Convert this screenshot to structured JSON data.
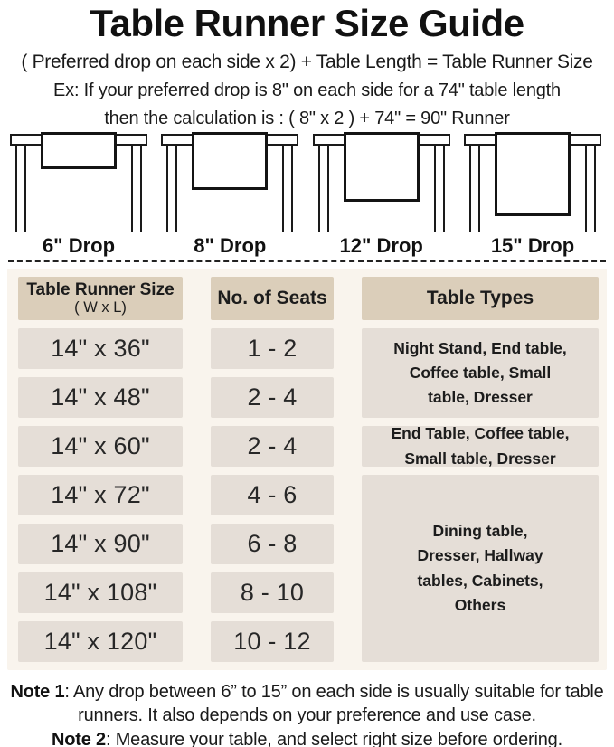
{
  "page": {
    "title": "Table Runner Size Guide",
    "formula": "( Preferred drop on each side x 2) + Table Length = Table Runner Size",
    "example_line1": "Ex: If your preferred drop is 8\" on each side for a 74\" table length",
    "example_line2": "then the calculation is : ( 8\" x 2 ) + 74\" = 90\" Runner"
  },
  "figures": [
    {
      "label": "6\" Drop"
    },
    {
      "label": "8\" Drop"
    },
    {
      "label": "12\" Drop"
    },
    {
      "label": "15\" Drop"
    }
  ],
  "guide": {
    "headers": {
      "size_line1": "Table Runner Size",
      "size_line2": "( W x L)",
      "seats": "No. of Seats",
      "types": "Table Types"
    },
    "rows": [
      {
        "size": "14\" x 36\"",
        "seats": "1 - 2"
      },
      {
        "size": "14\" x 48\"",
        "seats": "2 - 4"
      },
      {
        "size": "14\" x 60\"",
        "seats": "2 - 4"
      },
      {
        "size": "14\" x 72\"",
        "seats": "4 - 6"
      },
      {
        "size": "14\" x 90\"",
        "seats": "6 - 8"
      },
      {
        "size": "14\" x 108\"",
        "seats": "8 - 10"
      },
      {
        "size": "14\" x 120\"",
        "seats": "10 - 12"
      }
    ],
    "type_groups": [
      {
        "text": "Night Stand, End table,\nCoffee table, Small\ntable, Dresser"
      },
      {
        "text": "End Table, Coffee table,\nSmall table, Dresser"
      },
      {
        "text": "Dining table,\nDresser, Hallway\ntables, Cabinets,\nOthers"
      }
    ]
  },
  "notes": [
    {
      "label": "Note 1",
      "text": ": Any drop between 6” to 15” on each side is usually suitable for table runners. It also depends on your preference and use case."
    },
    {
      "label": "Note 2",
      "text": ": Measure your table, and select right size before ordering."
    }
  ],
  "colors": {
    "header_cell": "#dbceba",
    "data_cell": "#e5ded7",
    "panel": "#f9f4ed",
    "ink": "#1d1d1d"
  }
}
